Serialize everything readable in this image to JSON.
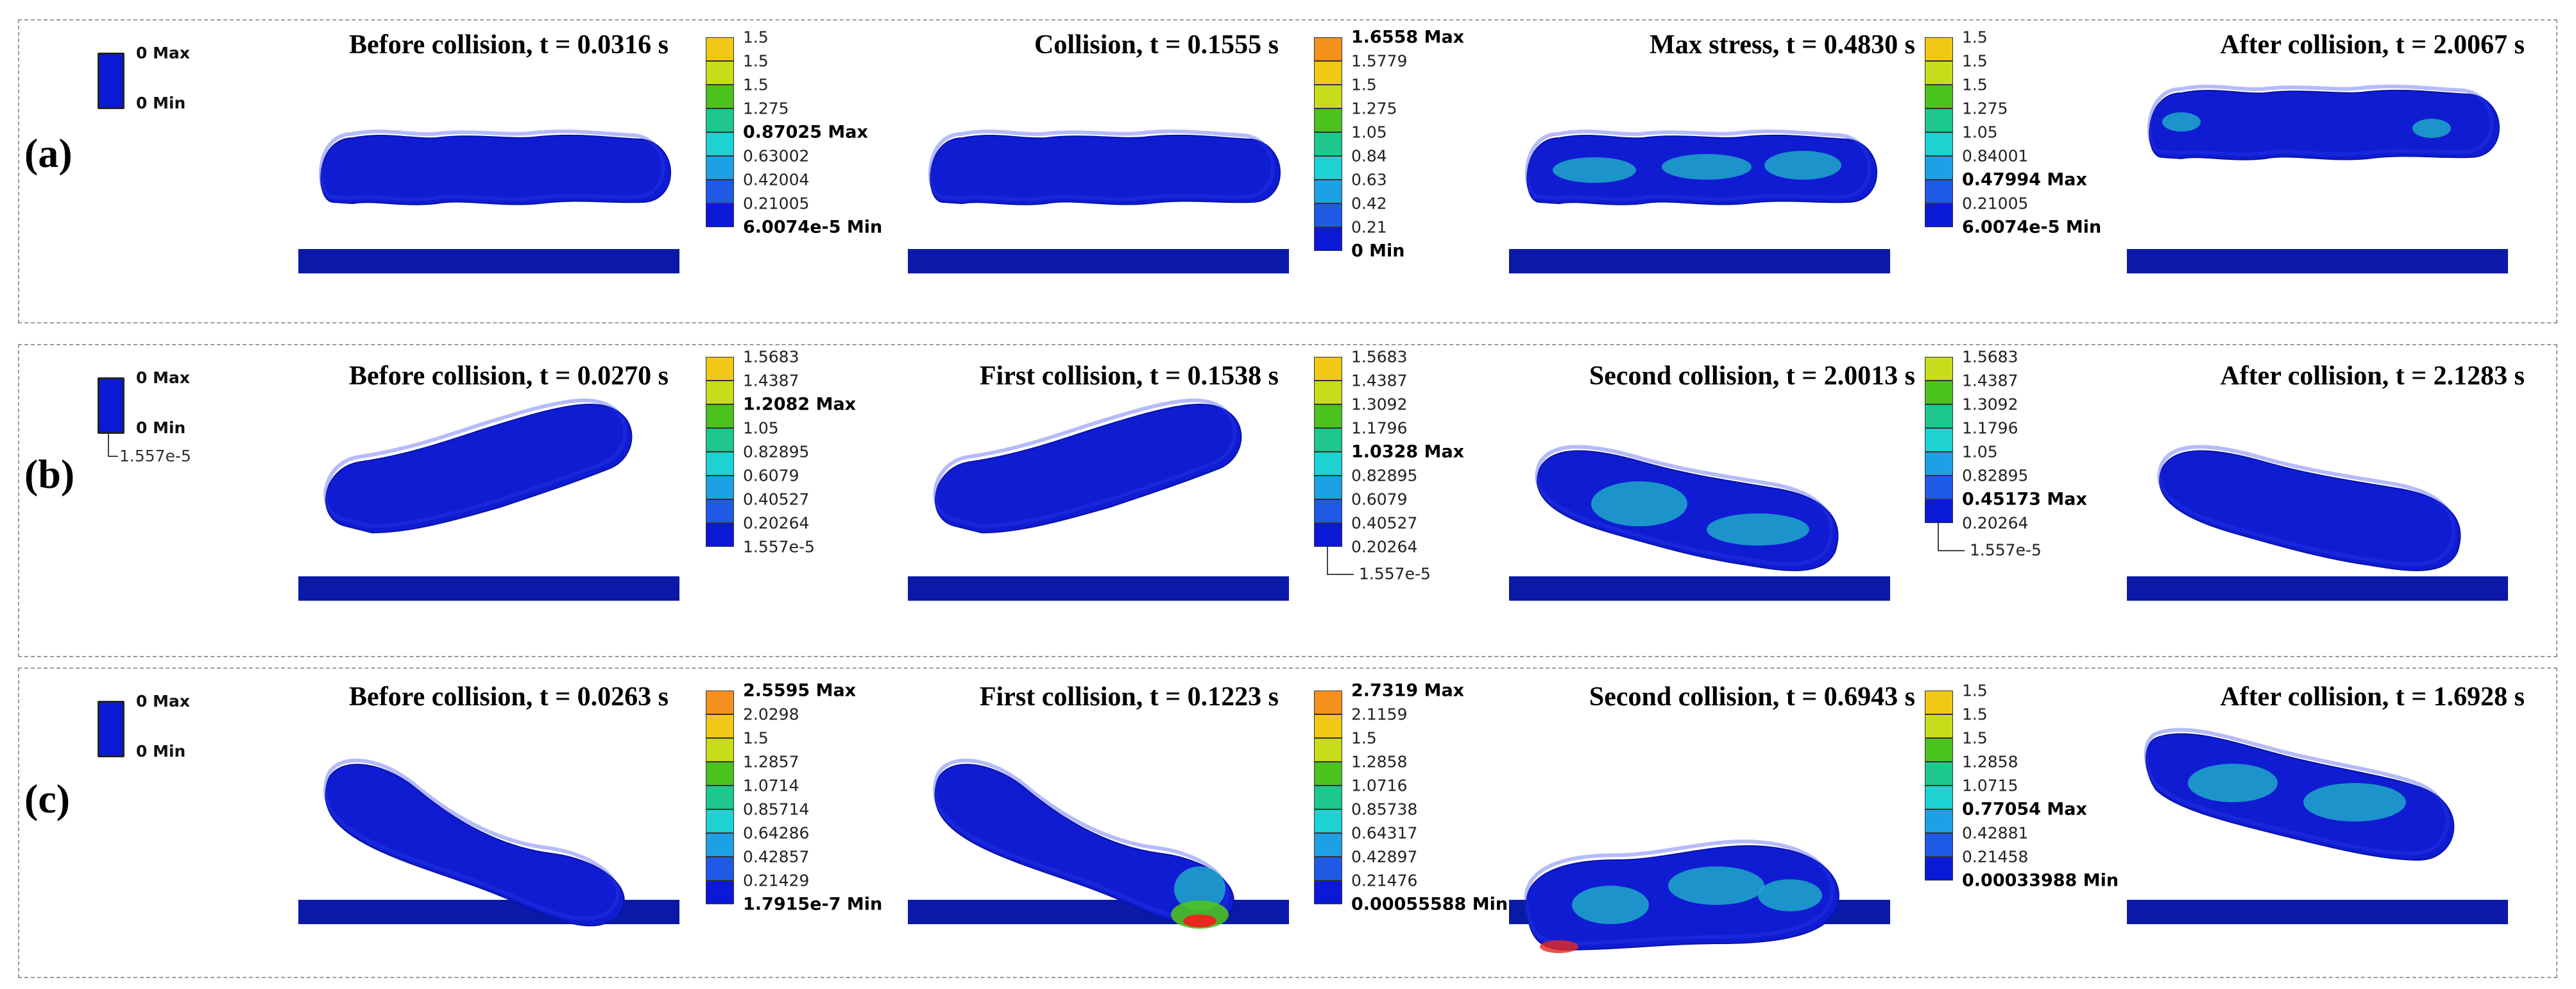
{
  "rows": [
    {
      "label": "(a)",
      "mini_legend": {
        "max": "0 Max",
        "min": "0 Min",
        "sub": ""
      },
      "panels": [
        {
          "title": "Before collision, t = 0.0316 s",
          "scale": {
            "ticks": [
              "1.5",
              "1.5",
              "1.5",
              "1.275",
              "0.87025 Max",
              "0.63002",
              "0.42004",
              "0.21005",
              "6.0074e-5 Min"
            ],
            "bold": [
              4,
              8
            ],
            "foot": ""
          }
        },
        {
          "title": "Collision, t = 0.1555 s",
          "scale": {
            "ticks": [
              "1.6558 Max",
              "1.5779",
              "1.5",
              "1.275",
              "1.05",
              "0.84",
              "0.63",
              "0.42",
              "0.21",
              "0 Min"
            ],
            "bold": [
              0,
              9
            ],
            "foot": ""
          }
        },
        {
          "title": "Max stress, t = 0.4830 s",
          "scale": {
            "ticks": [
              "1.5",
              "1.5",
              "1.5",
              "1.275",
              "1.05",
              "0.84001",
              "0.47994 Max",
              "0.21005",
              "6.0074e-5 Min"
            ],
            "bold": [
              6,
              8
            ],
            "foot": ""
          }
        },
        {
          "title": "After collision, t = 2.0067 s",
          "scale": null
        }
      ]
    },
    {
      "label": "(b)",
      "mini_legend": {
        "max": "0 Max",
        "min": "0 Min",
        "sub": "1.557e-5"
      },
      "panels": [
        {
          "title": "Before collision, t = 0.0270 s",
          "scale": {
            "ticks": [
              "1.5683",
              "1.4387",
              "1.2082 Max",
              "1.05",
              "0.82895",
              "0.6079",
              "0.40527",
              "0.20264",
              "1.557e-5"
            ],
            "bold": [
              2
            ],
            "foot": ""
          }
        },
        {
          "title": "First collision, t = 0.1538 s",
          "scale": {
            "ticks": [
              "1.5683",
              "1.4387",
              "1.3092",
              "1.1796",
              "1.0328 Max",
              "0.82895",
              "0.6079",
              "0.40527",
              "0.20264"
            ],
            "bold": [
              4
            ],
            "foot": "1.557e-5"
          }
        },
        {
          "title": "Second collision, t = 2.0013 s",
          "scale": {
            "ticks": [
              "1.5683",
              "1.4387",
              "1.3092",
              "1.1796",
              "1.05",
              "0.82895",
              "0.45173 Max",
              "0.20264"
            ],
            "bold": [
              6
            ],
            "foot": "1.557e-5"
          }
        },
        {
          "title": "After collision, t = 2.1283 s",
          "scale": null
        }
      ]
    },
    {
      "label": "(c)",
      "mini_legend": {
        "max": "0 Max",
        "min": "0 Min",
        "sub": ""
      },
      "panels": [
        {
          "title": "Before collision, t = 0.0263 s",
          "scale": {
            "ticks": [
              "2.5595 Max",
              "2.0298",
              "1.5",
              "1.2857",
              "1.0714",
              "0.85714",
              "0.64286",
              "0.42857",
              "0.21429",
              "1.7915e-7 Min"
            ],
            "bold": [
              0,
              9
            ],
            "foot": ""
          }
        },
        {
          "title": "First collision, t = 0.1223 s",
          "scale": {
            "ticks": [
              "2.7319 Max",
              "2.1159",
              "1.5",
              "1.2858",
              "1.0716",
              "0.85738",
              "0.64317",
              "0.42897",
              "0.21476",
              "0.00055588 Min"
            ],
            "bold": [
              0,
              9
            ],
            "foot": ""
          }
        },
        {
          "title": "Second collision, t = 0.6943 s",
          "scale": {
            "ticks": [
              "1.5",
              "1.5",
              "1.5",
              "1.2858",
              "1.0715",
              "0.77054 Max",
              "0.42881",
              "0.21458",
              "0.00033988 Min"
            ],
            "bold": [
              5,
              8
            ],
            "foot": ""
          }
        },
        {
          "title": "After collision, t = 1.6928 s",
          "scale": null
        }
      ]
    }
  ],
  "colors": {
    "body": "#0f1cd2",
    "plate": "#0b1aa6",
    "cyan": "#1fa8c9",
    "scale": [
      "#e8281e",
      "#f5901e",
      "#f2c816",
      "#c8dc1c",
      "#4cc21e",
      "#1ec88c",
      "#1ed2d2",
      "#1ea0e6",
      "#1e5ae6",
      "#0a19d6"
    ]
  }
}
